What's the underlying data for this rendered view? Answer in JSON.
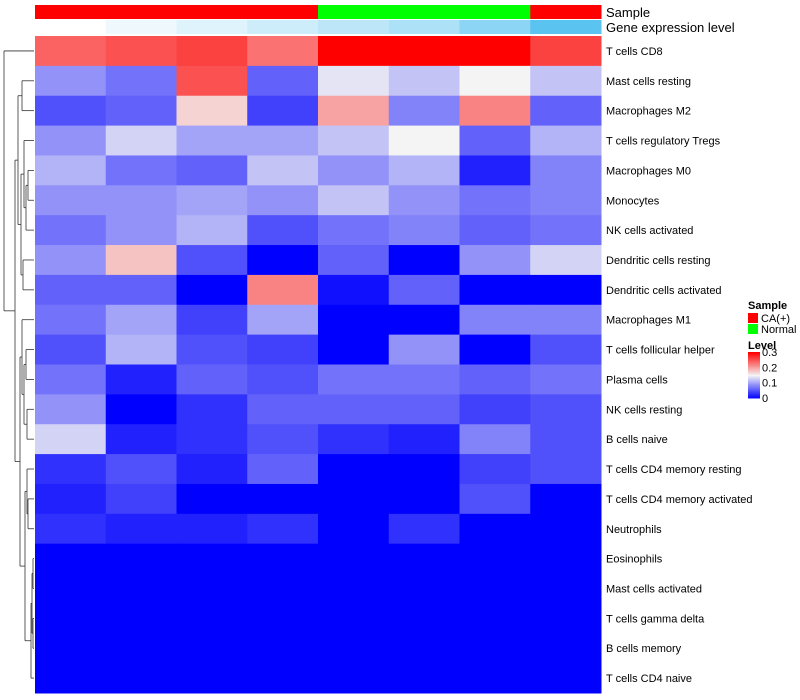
{
  "chart_data": {
    "type": "heatmap",
    "title": "",
    "colormap": {
      "min": 0,
      "mid": 0.15,
      "max": 0.3,
      "low_color": "#0000ff",
      "mid_color": "#f4f4f4",
      "high_color": "#ff0000"
    },
    "annotation_tracks": [
      {
        "name": "Sample",
        "values": [
          "CA(+)",
          "CA(+)",
          "CA(+)",
          "CA(+)",
          "Normal",
          "Normal",
          "Normal",
          "CA(+)"
        ]
      },
      {
        "name": "Gene expression level",
        "values": [
          0.0,
          0.1,
          0.2,
          0.3,
          0.4,
          0.5,
          0.7,
          1.0
        ]
      }
    ],
    "track_colors": {
      "CA(+)": "#ff0000",
      "Normal": "#00ff00",
      "expr_low": "#ffffff",
      "expr_high": "#5bc3ef"
    },
    "rows": [
      "T cells CD8",
      "Mast cells resting",
      "Macrophages M2",
      "T cells regulatory  Tregs",
      "Macrophages M0",
      "Monocytes",
      "NK cells activated",
      "Dendritic cells resting",
      "Dendritic cells activated",
      "Macrophages M1",
      "T cells follicular helper",
      "Plasma cells",
      "NK cells resting",
      "B cells naive",
      "T cells CD4 memory resting",
      "T cells CD4 memory activated",
      "Neutrophils",
      "Eosinophils",
      "Mast cells activated",
      "T cells gamma delta",
      "B cells memory",
      "T cells CD4 naive"
    ],
    "values": [
      [
        0.24,
        0.25,
        0.26,
        0.23,
        0.3,
        0.3,
        0.3,
        0.26
      ],
      [
        0.09,
        0.07,
        0.25,
        0.06,
        0.14,
        0.12,
        0.15,
        0.12
      ],
      [
        0.05,
        0.06,
        0.17,
        0.04,
        0.2,
        0.08,
        0.22,
        0.06
      ],
      [
        0.09,
        0.13,
        0.1,
        0.1,
        0.12,
        0.15,
        0.06,
        0.11
      ],
      [
        0.11,
        0.07,
        0.06,
        0.12,
        0.09,
        0.11,
        0.02,
        0.08
      ],
      [
        0.09,
        0.09,
        0.1,
        0.09,
        0.12,
        0.09,
        0.07,
        0.08
      ],
      [
        0.07,
        0.09,
        0.11,
        0.05,
        0.07,
        0.08,
        0.06,
        0.07
      ],
      [
        0.09,
        0.18,
        0.05,
        0.0,
        0.06,
        0.0,
        0.09,
        0.13
      ],
      [
        0.06,
        0.06,
        0.0,
        0.22,
        0.01,
        0.06,
        0.0,
        0.0
      ],
      [
        0.07,
        0.1,
        0.04,
        0.1,
        0.0,
        0.0,
        0.08,
        0.08
      ],
      [
        0.05,
        0.11,
        0.05,
        0.04,
        0.0,
        0.09,
        0.0,
        0.05
      ],
      [
        0.07,
        0.02,
        0.06,
        0.05,
        0.07,
        0.07,
        0.06,
        0.07
      ],
      [
        0.09,
        0.0,
        0.03,
        0.06,
        0.06,
        0.06,
        0.04,
        0.05
      ],
      [
        0.13,
        0.02,
        0.03,
        0.05,
        0.03,
        0.02,
        0.08,
        0.05
      ],
      [
        0.03,
        0.05,
        0.02,
        0.06,
        0.0,
        0.0,
        0.04,
        0.05
      ],
      [
        0.02,
        0.04,
        0.0,
        0.0,
        0.0,
        0.0,
        0.05,
        0.0
      ],
      [
        0.03,
        0.02,
        0.02,
        0.03,
        0.0,
        0.03,
        0.0,
        0.0
      ],
      [
        0.0,
        0.0,
        0.0,
        0.0,
        0.0,
        0.0,
        0.0,
        0.0
      ],
      [
        0.0,
        0.0,
        0.0,
        0.0,
        0.0,
        0.0,
        0.0,
        0.0
      ],
      [
        0.0,
        0.0,
        0.0,
        0.0,
        0.0,
        0.0,
        0.0,
        0.0
      ],
      [
        0.0,
        0.0,
        0.0,
        0.0,
        0.0,
        0.0,
        0.0,
        0.0
      ],
      [
        0.0,
        0.0,
        0.0,
        0.0,
        0.0,
        0.0,
        0.0,
        0.0
      ]
    ],
    "legend": {
      "sample_title": "Sample",
      "sample_entries": [
        "CA(+)",
        "Normal"
      ],
      "level_title": "Level",
      "level_ticks": [
        0.3,
        0.2,
        0.1,
        0
      ],
      "level_tick_labels": [
        "0.3",
        "0.2",
        "0.1",
        "0"
      ]
    },
    "dendrogram": "rows-clustered"
  }
}
